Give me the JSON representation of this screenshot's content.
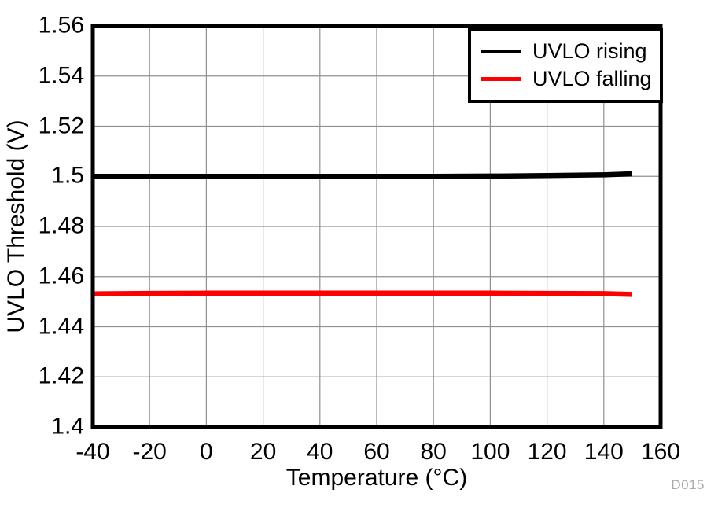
{
  "figure": {
    "watermark": "D015"
  },
  "chart_data": {
    "type": "line",
    "title": "",
    "xlabel": "Temperature (°C)",
    "ylabel": "UVLO Threshold (V)",
    "xlim": [
      -40,
      160
    ],
    "ylim": [
      1.4,
      1.56
    ],
    "x_ticks": [
      -40,
      -20,
      0,
      20,
      40,
      60,
      80,
      100,
      120,
      140,
      160
    ],
    "y_ticks": [
      1.4,
      1.42,
      1.44,
      1.46,
      1.48,
      1.5,
      1.52,
      1.54,
      1.56
    ],
    "y_tick_labels": [
      "1.4",
      "1.42",
      "1.44",
      "1.46",
      "1.48",
      "1.5",
      "1.52",
      "1.54",
      "1.56"
    ],
    "grid": true,
    "legend": {
      "position": "top-right"
    },
    "x": [
      -40,
      -20,
      0,
      20,
      40,
      60,
      80,
      100,
      120,
      140,
      150
    ],
    "series": [
      {
        "name": "UVLO rising",
        "color": "#000000",
        "values": [
          1.5,
          1.5,
          1.5,
          1.5,
          1.5,
          1.5,
          1.5,
          1.5001,
          1.5003,
          1.5006,
          1.501
        ]
      },
      {
        "name": "UVLO falling",
        "color": "#ff0000",
        "values": [
          1.4531,
          1.4533,
          1.4534,
          1.4534,
          1.4534,
          1.4534,
          1.4534,
          1.4534,
          1.4533,
          1.4532,
          1.4529
        ]
      }
    ],
    "colors": {
      "grid": "#909090",
      "frame": "#000000",
      "text": "#000000",
      "watermark": "#aaaaaa"
    }
  }
}
